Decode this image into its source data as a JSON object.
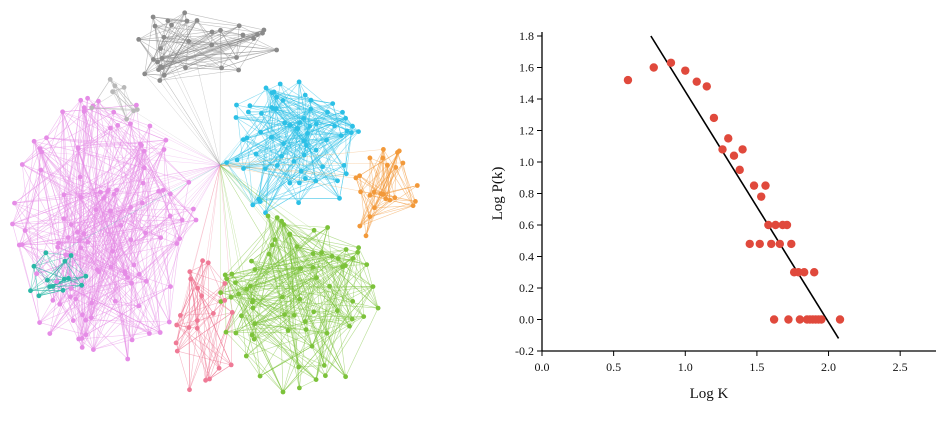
{
  "network_graph": {
    "communities": [
      {
        "color": "#8a8a8a"
      },
      {
        "color": "#2cc0e6"
      },
      {
        "color": "#f2993a"
      },
      {
        "color": "#7cc23a"
      },
      {
        "color": "#ef7a96"
      },
      {
        "color": "#e58ce6"
      },
      {
        "color": "#2ab7a6"
      },
      {
        "color": "#b8b8b8"
      }
    ]
  },
  "chart_data": {
    "type": "scatter",
    "xlabel": "Log K",
    "ylabel": "Log P(k)",
    "xlim": [
      0.0,
      2.75
    ],
    "ylim": [
      -0.2,
      1.8
    ],
    "x_ticks": [
      "0.0",
      "0.5",
      "1.0",
      "1.5",
      "2.0",
      "2.5"
    ],
    "y_ticks": [
      "-0.2",
      "0.0",
      "0.2",
      "0.4",
      "0.6",
      "0.8",
      "1.0",
      "1.2",
      "1.4",
      "1.6",
      "1.8"
    ],
    "grid": false,
    "point_color": "#e0493c",
    "points": [
      {
        "x": 0.6,
        "y": 1.52
      },
      {
        "x": 0.78,
        "y": 1.6
      },
      {
        "x": 0.9,
        "y": 1.63
      },
      {
        "x": 1.0,
        "y": 1.58
      },
      {
        "x": 1.08,
        "y": 1.51
      },
      {
        "x": 1.15,
        "y": 1.48
      },
      {
        "x": 1.2,
        "y": 1.28
      },
      {
        "x": 1.26,
        "y": 1.08
      },
      {
        "x": 1.3,
        "y": 1.15
      },
      {
        "x": 1.34,
        "y": 1.04
      },
      {
        "x": 1.38,
        "y": 0.95
      },
      {
        "x": 1.4,
        "y": 1.08
      },
      {
        "x": 1.45,
        "y": 0.48
      },
      {
        "x": 1.48,
        "y": 0.85
      },
      {
        "x": 1.52,
        "y": 0.48
      },
      {
        "x": 1.53,
        "y": 0.78
      },
      {
        "x": 1.56,
        "y": 0.85
      },
      {
        "x": 1.58,
        "y": 0.6
      },
      {
        "x": 1.6,
        "y": 0.48
      },
      {
        "x": 1.62,
        "y": 0.0
      },
      {
        "x": 1.63,
        "y": 0.6
      },
      {
        "x": 1.66,
        "y": 0.48
      },
      {
        "x": 1.68,
        "y": 0.6
      },
      {
        "x": 1.71,
        "y": 0.6
      },
      {
        "x": 1.72,
        "y": 0.0
      },
      {
        "x": 1.74,
        "y": 0.48
      },
      {
        "x": 1.76,
        "y": 0.3
      },
      {
        "x": 1.79,
        "y": 0.3
      },
      {
        "x": 1.8,
        "y": 0.0
      },
      {
        "x": 1.83,
        "y": 0.3
      },
      {
        "x": 1.85,
        "y": 0.0
      },
      {
        "x": 1.87,
        "y": 0.0
      },
      {
        "x": 1.89,
        "y": 0.0
      },
      {
        "x": 1.9,
        "y": 0.3
      },
      {
        "x": 1.91,
        "y": 0.0
      },
      {
        "x": 1.93,
        "y": 0.0
      },
      {
        "x": 1.95,
        "y": 0.0
      },
      {
        "x": 2.08,
        "y": 0.0
      }
    ],
    "fit_line": {
      "color": "#000000",
      "x": [
        0.76,
        2.07
      ],
      "y": [
        1.8,
        -0.12
      ]
    }
  }
}
